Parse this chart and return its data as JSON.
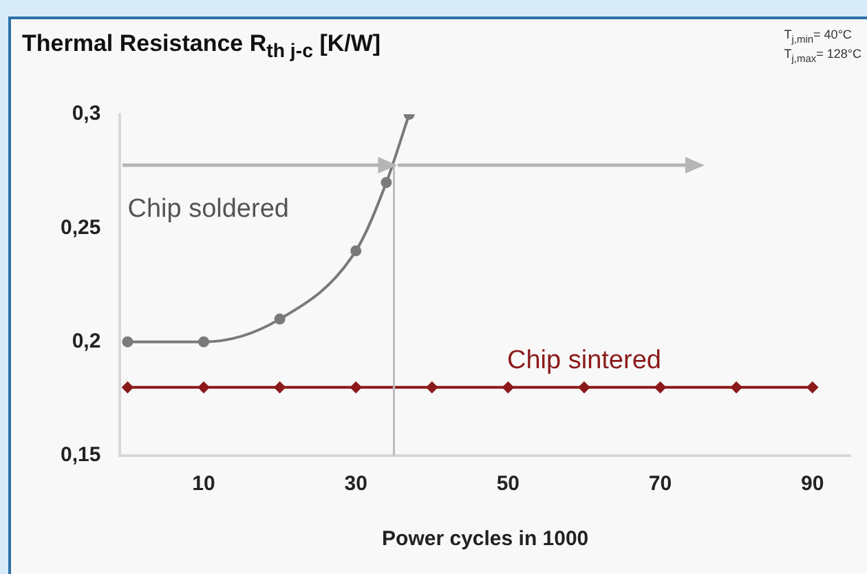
{
  "chart_data": {
    "type": "line",
    "title": "Thermal Resistance R$_{th j-c}$ [K/W]",
    "xlabel": "Power cycles in 1000",
    "annotations": [
      "T$_{j,min}$=  40°C",
      "T$_{j,max}$= 128°C"
    ],
    "series": [
      {
        "name": "Chip soldered",
        "color": "#7a7a7a",
        "marker": "circle",
        "x": [
          0,
          10,
          20,
          30,
          34,
          37
        ],
        "values": [
          0.2,
          0.2,
          0.21,
          0.24,
          0.27,
          0.3
        ]
      },
      {
        "name": "Chip sintered",
        "color": "#8b1a1a",
        "marker": "diamond",
        "x": [
          0,
          10,
          20,
          30,
          40,
          50,
          60,
          70,
          80,
          90
        ],
        "values": [
          0.18,
          0.18,
          0.18,
          0.18,
          0.18,
          0.18,
          0.18,
          0.18,
          0.18,
          0.18
        ]
      }
    ],
    "ref_lines": [
      {
        "axis": "x",
        "value": 35,
        "color": "#bdbdbd"
      }
    ],
    "xlim": [
      -1,
      95
    ],
    "xticks": [
      10,
      30,
      50,
      70,
      90
    ],
    "ylim": [
      0.15,
      0.3
    ],
    "yticks": [
      {
        "value": 0.15,
        "label": "0,15"
      },
      {
        "value": 0.2,
        "label": "0,2"
      },
      {
        "value": 0.25,
        "label": "0,25"
      },
      {
        "value": 0.3,
        "label": "0,3"
      }
    ],
    "grid": false,
    "legend": false
  }
}
